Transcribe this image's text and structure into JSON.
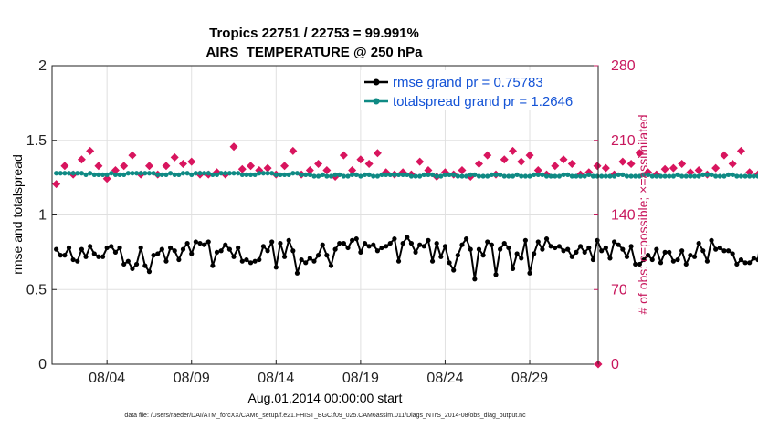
{
  "chart_data": {
    "type": "line",
    "title": "Tropics 22751 / 22753 = 99.991%",
    "subtitle": "AIRS_TEMPERATURE @ 250 hPa",
    "xlabel": "Aug.01,2014 00:00:00 start",
    "ylabel": "rmse and totalspread",
    "ylabel_right": "# of obs: o=possible; ×=assimilated",
    "xlim": [
      0,
      32.3
    ],
    "ylim": [
      0,
      2
    ],
    "ylim_right": [
      0,
      280
    ],
    "x_ticks": [
      3.25,
      8.25,
      13.25,
      18.25,
      23.25,
      28.25
    ],
    "x_tick_labels": [
      "08/04",
      "08/09",
      "08/14",
      "08/19",
      "08/24",
      "08/29"
    ],
    "y_ticks": [
      0,
      0.5,
      1,
      1.5,
      2
    ],
    "y_tick_labels": [
      "0",
      "0.5",
      "1",
      "1.5",
      "2"
    ],
    "y_ticks_right": [
      0,
      70,
      140,
      210,
      280
    ],
    "y_tick_labels_right": [
      "0",
      "70",
      "140",
      "210",
      "280"
    ],
    "grid": true,
    "legend_position": "top-right",
    "x_start": 0.25,
    "x_step": 0.25,
    "series": [
      {
        "name": "rmse grand pr = 0.75783",
        "color": "#000000",
        "axis": "left",
        "marker": "circle",
        "values": [
          0.77,
          0.73,
          0.73,
          0.78,
          0.7,
          0.69,
          0.77,
          0.72,
          0.79,
          0.74,
          0.72,
          0.72,
          0.78,
          0.79,
          0.75,
          0.78,
          0.67,
          0.69,
          0.64,
          0.67,
          0.78,
          0.66,
          0.62,
          0.73,
          0.74,
          0.77,
          0.69,
          0.78,
          0.76,
          0.7,
          0.77,
          0.81,
          0.74,
          0.82,
          0.81,
          0.8,
          0.82,
          0.66,
          0.75,
          0.76,
          0.8,
          0.77,
          0.72,
          0.78,
          0.69,
          0.7,
          0.68,
          0.69,
          0.7,
          0.79,
          0.76,
          0.82,
          0.65,
          0.81,
          0.72,
          0.83,
          0.76,
          0.61,
          0.7,
          0.68,
          0.71,
          0.69,
          0.73,
          0.8,
          0.73,
          0.66,
          0.77,
          0.81,
          0.81,
          0.78,
          0.83,
          0.84,
          0.75,
          0.81,
          0.79,
          0.8,
          0.76,
          0.78,
          0.79,
          0.81,
          0.84,
          0.69,
          0.81,
          0.85,
          0.81,
          0.75,
          0.8,
          0.79,
          0.83,
          0.69,
          0.81,
          0.72,
          0.79,
          0.68,
          0.63,
          0.73,
          0.8,
          0.84,
          0.77,
          0.57,
          0.77,
          0.73,
          0.82,
          0.8,
          0.6,
          0.77,
          0.81,
          0.78,
          0.64,
          0.74,
          0.71,
          0.83,
          0.61,
          0.74,
          0.82,
          0.77,
          0.84,
          0.79,
          0.78,
          0.79,
          0.76,
          0.77,
          0.72,
          0.75,
          0.79,
          0.75,
          0.78,
          0.7,
          0.83,
          0.76,
          0.78,
          0.71,
          0.82,
          0.8,
          0.77,
          0.72,
          0.79,
          0.67,
          0.67,
          0.7,
          0.73,
          0.7,
          0.77,
          0.68,
          0.75,
          0.75,
          0.69,
          0.7,
          0.76,
          0.67,
          0.73,
          0.72,
          0.81,
          0.76,
          0.69,
          0.83,
          0.77,
          0.78,
          0.76,
          0.76,
          0.74,
          0.67,
          0.7,
          0.68,
          0.68,
          0.71,
          0.7,
          0.9,
          0.76,
          0.7,
          0.73,
          0.68,
          0.78,
          0.76,
          0.79,
          0.81,
          0.81,
          0.74,
          0.8,
          0.87,
          0.8,
          0.73,
          0.81,
          0.81,
          0.74,
          0.81,
          0.82,
          0.77,
          0.81,
          0.76,
          0.81,
          0.69,
          0.76,
          0.88,
          0.77,
          0.79,
          0.8,
          0.81,
          0.81,
          0.73,
          0.73,
          0.79,
          0.8,
          0.77,
          0.78,
          0.76,
          0.77,
          0.75,
          0.72,
          0.74,
          0.75,
          0.77,
          0.76,
          0.76,
          0.83,
          0.87,
          0.76,
          0.72,
          0.81,
          0.8,
          0.82,
          0.77,
          0.8,
          0.75,
          0.8,
          0.82,
          0.81,
          0.78,
          0.82,
          0.81,
          0.84,
          0.73,
          0.77,
          0.8,
          0.75,
          0.77,
          0.73,
          0.75,
          0.76,
          0.72,
          0.81,
          0.76,
          0.76,
          0.8,
          0.81,
          0.74,
          0.8,
          0.79,
          0.8,
          0.74,
          0.79,
          0.8,
          0.77,
          0.81
        ]
      },
      {
        "name": "totalspread grand pr = 1.2646",
        "color": "#0f8a84",
        "axis": "left",
        "marker": "circle",
        "values": [
          1.28,
          1.28,
          1.28,
          1.28,
          1.28,
          1.28,
          1.28,
          1.27,
          1.28,
          1.27,
          1.27,
          1.27,
          1.27,
          1.28,
          1.27,
          1.27,
          1.27,
          1.28,
          1.28,
          1.28,
          1.28,
          1.28,
          1.28,
          1.28,
          1.27,
          1.27,
          1.27,
          1.28,
          1.27,
          1.27,
          1.28,
          1.28,
          1.27,
          1.28,
          1.28,
          1.28,
          1.28,
          1.27,
          1.27,
          1.28,
          1.28,
          1.28,
          1.28,
          1.28,
          1.27,
          1.27,
          1.27,
          1.27,
          1.28,
          1.28,
          1.28,
          1.28,
          1.27,
          1.27,
          1.27,
          1.27,
          1.28,
          1.28,
          1.27,
          1.27,
          1.27,
          1.26,
          1.26,
          1.27,
          1.26,
          1.26,
          1.27,
          1.27,
          1.26,
          1.26,
          1.27,
          1.27,
          1.26,
          1.27,
          1.27,
          1.26,
          1.26,
          1.27,
          1.27,
          1.27,
          1.27,
          1.27,
          1.27,
          1.27,
          1.26,
          1.26,
          1.26,
          1.27,
          1.27,
          1.27,
          1.26,
          1.26,
          1.27,
          1.27,
          1.27,
          1.26,
          1.26,
          1.26,
          1.27,
          1.27,
          1.26,
          1.26,
          1.26,
          1.27,
          1.27,
          1.27,
          1.26,
          1.26,
          1.26,
          1.27,
          1.26,
          1.26,
          1.26,
          1.27,
          1.27,
          1.27,
          1.26,
          1.26,
          1.26,
          1.26,
          1.27,
          1.27,
          1.26,
          1.26,
          1.26,
          1.26,
          1.27,
          1.26,
          1.26,
          1.26,
          1.26,
          1.26,
          1.26,
          1.27,
          1.27,
          1.26,
          1.26,
          1.26,
          1.26,
          1.27,
          1.27,
          1.26,
          1.26,
          1.26,
          1.26,
          1.26,
          1.26,
          1.27,
          1.26,
          1.26,
          1.26,
          1.26,
          1.26,
          1.27,
          1.27,
          1.27,
          1.26,
          1.26,
          1.26,
          1.27,
          1.27,
          1.26,
          1.26,
          1.26,
          1.26,
          1.26,
          1.26,
          1.26,
          1.26,
          1.27,
          1.27,
          1.26,
          1.26,
          1.26,
          1.26,
          1.27,
          1.26,
          1.26,
          1.26,
          1.26,
          1.26,
          1.26,
          1.27,
          1.26,
          1.26,
          1.26,
          1.26,
          1.26,
          1.26,
          1.27,
          1.26,
          1.26,
          1.26,
          1.26,
          1.26,
          1.26,
          1.26,
          1.26,
          1.26,
          1.26,
          1.27,
          1.26,
          1.26,
          1.26,
          1.26,
          1.26,
          1.26,
          1.26,
          1.26,
          1.26,
          1.26,
          1.27,
          1.26,
          1.26,
          1.26,
          1.26,
          1.26,
          1.26,
          1.26,
          1.26,
          1.26,
          1.26,
          1.26,
          1.26,
          1.26,
          1.27,
          1.26,
          1.26,
          1.26,
          1.26,
          1.26,
          1.26,
          1.26,
          1.26,
          1.26,
          1.26,
          1.26,
          1.26,
          1.26,
          1.26,
          1.26,
          1.26,
          1.26,
          1.26,
          1.26,
          1.26,
          1.26,
          1.26,
          1.26,
          1.26,
          1.26,
          1.26,
          1.26,
          1.26,
          1.26
        ]
      },
      {
        "name": "# of obs possible/assimilated",
        "color": "#d8155e",
        "axis": "right",
        "marker": "diamond",
        "show_in_legend": false,
        "values": [
          169,
          188,
          186,
          184,
          178,
          180,
          192,
          183,
          200,
          176,
          186,
          192,
          174,
          188,
          182,
          198,
          186,
          178,
          196,
          200,
          178,
          190,
          186,
          176,
          178,
          198,
          186,
          180,
          194,
          183,
          188,
          182,
          190,
          176,
          178,
          182,
          178,
          198,
          180,
          183,
          178,
          182,
          204,
          190,
          183,
          176,
          186,
          174,
          182,
          198,
          184,
          190,
          178,
          194,
          186,
          180,
          200,
          190,
          178,
          186,
          182,
          176,
          188,
          198,
          182,
          190,
          176,
          184,
          196,
          188,
          182,
          176,
          192,
          180,
          188,
          186,
          198,
          183,
          180,
          188,
          178,
          196,
          180,
          182,
          178,
          186,
          190,
          200,
          182,
          188,
          176,
          192,
          180,
          186,
          178,
          196,
          182,
          190,
          176,
          204,
          188,
          183,
          196,
          180,
          178,
          186,
          192,
          178,
          200,
          182,
          190,
          176,
          196,
          184,
          182,
          188,
          178,
          200,
          186,
          176,
          192,
          180,
          188,
          182,
          178,
          196,
          180,
          190,
          186,
          200,
          184,
          182,
          178,
          192,
          190,
          176,
          188,
          182,
          198,
          186,
          180,
          194,
          178,
          190,
          183,
          204,
          184,
          176,
          188,
          196,
          180,
          186,
          182,
          200,
          178,
          190,
          184,
          178,
          196,
          182,
          188,
          176,
          200,
          186,
          180,
          192,
          178,
          188,
          182,
          176,
          204,
          184,
          190,
          178,
          196,
          180,
          188,
          186,
          178,
          200,
          182,
          190,
          176,
          196,
          184,
          180,
          188,
          178,
          204,
          186,
          182,
          190,
          176,
          196,
          180,
          188,
          178,
          184,
          200,
          182,
          190,
          176,
          196,
          186,
          180,
          188,
          178,
          204,
          184,
          182,
          190,
          176,
          196,
          180,
          188,
          178,
          184,
          200,
          182,
          190,
          176,
          196,
          186,
          180,
          188,
          178,
          204,
          184,
          182,
          190,
          176,
          196,
          180,
          188,
          178,
          184,
          200,
          182,
          190,
          176,
          196,
          186,
          180,
          188,
          178
        ]
      }
    ]
  },
  "footnote": "data file: /Users/raeder/DAI/ATM_forcXX/CAM6_setup/f.e21.FHIST_BGC.f09_025.CAM6assim.011/Diags_NTrS_2014-08/obs_diag_output.nc"
}
